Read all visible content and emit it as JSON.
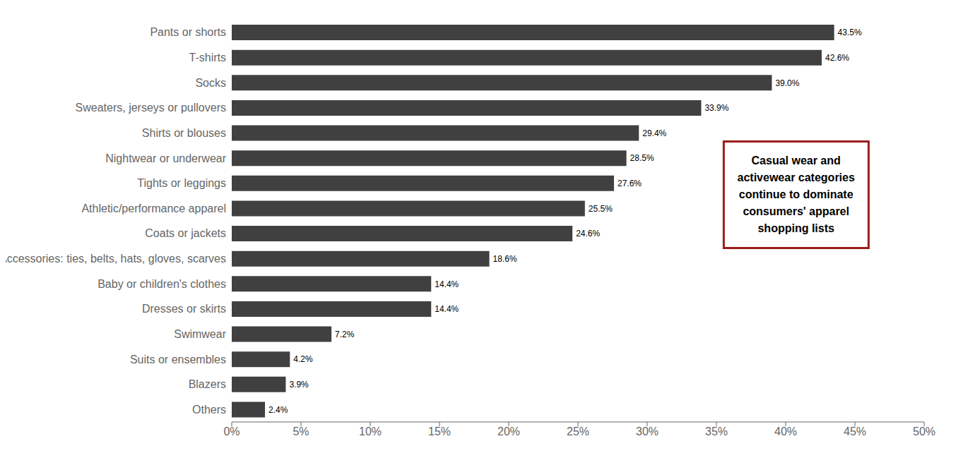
{
  "chart_data": {
    "type": "bar",
    "orientation": "horizontal",
    "categories": [
      "Others",
      "Blazers",
      "Suits or ensembles",
      "Swimwear",
      "Dresses or skirts",
      "Baby or children's clothes",
      "Accessories: ties, belts, hats, gloves, scarves",
      "Coats or jackets",
      "Athletic/performance apparel",
      "Tights or leggings",
      "Nightwear or underwear",
      "Shirts or blouses",
      "Sweaters, jerseys or pullovers",
      "Socks",
      "T-shirts",
      "Pants or shorts"
    ],
    "values": [
      2.4,
      3.9,
      4.2,
      7.2,
      14.4,
      14.4,
      18.6,
      24.6,
      25.5,
      27.6,
      28.5,
      29.4,
      33.9,
      39.0,
      42.6,
      43.5
    ],
    "value_labels": [
      "2.4%",
      "3.9%",
      "4.2%",
      "7.2%",
      "14.4%",
      "14.4%",
      "18.6%",
      "24.6%",
      "25.5%",
      "27.6%",
      "28.5%",
      "29.4%",
      "33.9%",
      "39.0%",
      "42.6%",
      "43.5%"
    ],
    "color": "#404040",
    "data_labels": true,
    "grid": false,
    "xlim": [
      0,
      50
    ],
    "xticks": [
      {
        "value": 0,
        "label": "0%"
      },
      {
        "value": 5,
        "label": "5%"
      },
      {
        "value": 10,
        "label": "10%"
      },
      {
        "value": 15,
        "label": "15%"
      },
      {
        "value": 20,
        "label": "20%"
      },
      {
        "value": 25,
        "label": "25%"
      },
      {
        "value": 30,
        "label": "30%"
      },
      {
        "value": 35,
        "label": "35%"
      },
      {
        "value": 40,
        "label": "40%"
      },
      {
        "value": 45,
        "label": "45%"
      },
      {
        "value": 50,
        "label": "50%"
      }
    ],
    "annotations": [
      {
        "text": "Casual wear and\nactivewear categories\ncontinue to dominate\nconsumers' apparel\nshopping lists",
        "color": "#9b1c1c"
      }
    ]
  }
}
